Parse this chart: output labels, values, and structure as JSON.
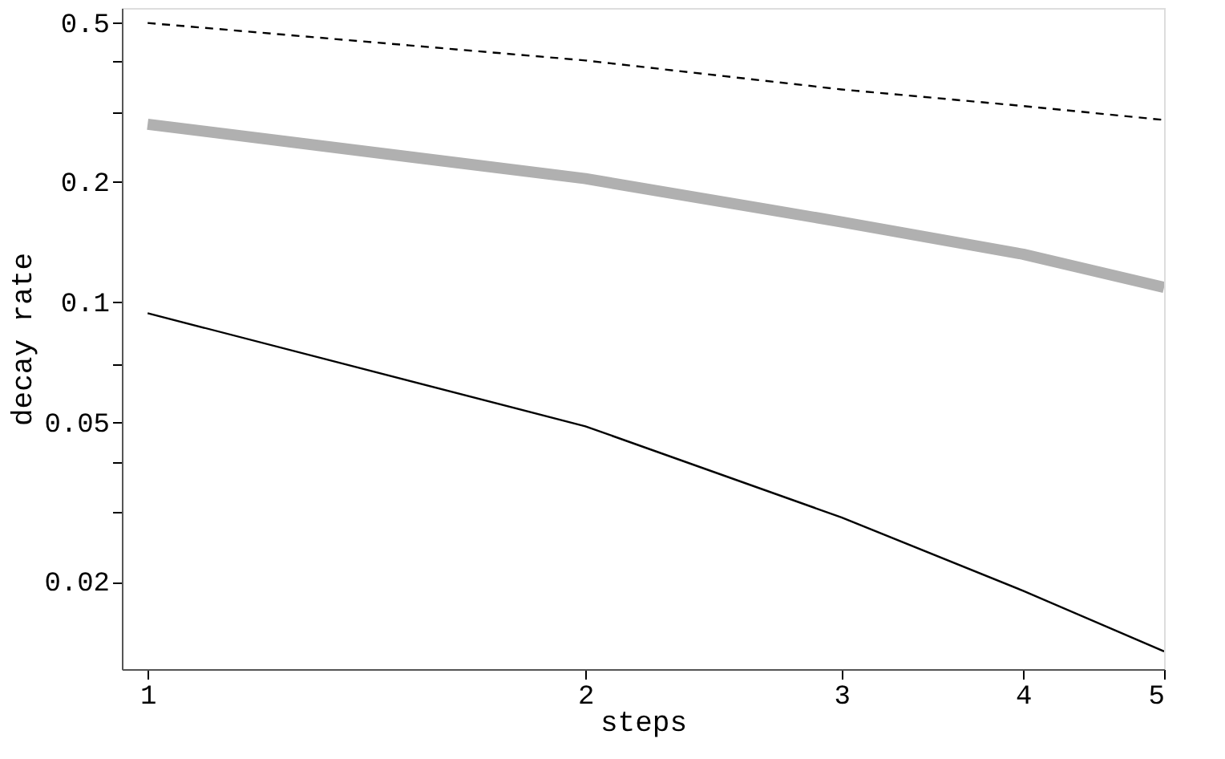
{
  "chart_data": {
    "type": "line",
    "xlabel": "steps",
    "ylabel": "decay rate",
    "x": [
      1,
      2,
      3,
      4,
      5
    ],
    "log": "xy",
    "grid": false,
    "legend": false,
    "marker": "none",
    "xlim": [
      0.96,
      5
    ],
    "xticks": [
      1,
      2,
      3,
      4,
      5
    ],
    "ylim": [
      0.0121,
      0.545
    ],
    "yticks": [
      0.02,
      {
        "value": 0.03,
        "label": null
      },
      {
        "value": 0.04,
        "label": null
      },
      0.05,
      {
        "value": 0.07,
        "label": null
      },
      0.1,
      0.2,
      {
        "value": 0.3,
        "label": null
      },
      {
        "value": 0.4,
        "label": null
      },
      0.5
    ],
    "series": [
      {
        "color": "#000000",
        "line_style": "dashed",
        "values": [
          0.5,
          0.403,
          0.341,
          0.31,
          0.286
        ]
      },
      {
        "color": "#b0b0b0",
        "line_style": "solid",
        "values": [
          0.279,
          0.204,
          0.159,
          0.132,
          0.109
        ]
      },
      {
        "color": "#000000",
        "line_style": "solid",
        "values": [
          0.094,
          0.049,
          0.029,
          0.019,
          0.0134
        ]
      }
    ]
  }
}
